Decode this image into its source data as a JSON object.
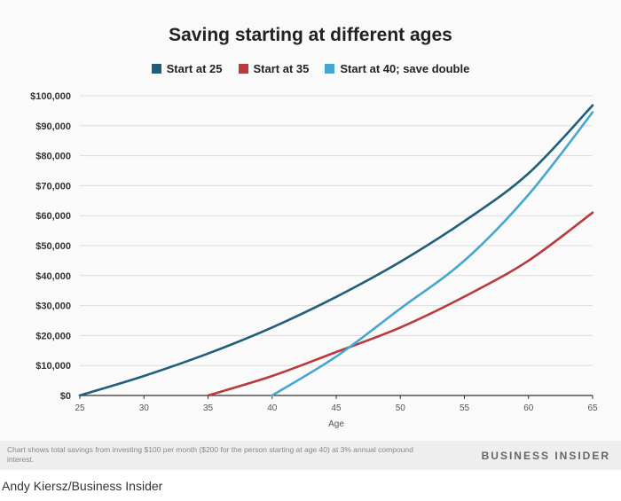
{
  "chart_data": {
    "type": "line",
    "title": "Saving starting at different ages",
    "xlabel": "Age",
    "ylabel": "",
    "xlim": [
      25,
      65
    ],
    "ylim": [
      0,
      100000
    ],
    "x_ticks": [
      "25",
      "30",
      "35",
      "40",
      "45",
      "50",
      "55",
      "60",
      "65"
    ],
    "y_ticks": [
      "$0",
      "$10,000",
      "$20,000",
      "$30,000",
      "$40,000",
      "$50,000",
      "$60,000",
      "$70,000",
      "$80,000",
      "$90,000",
      "$100,000"
    ],
    "grid": "horizontal",
    "legend_position": "top-center",
    "x": [
      25,
      30,
      35,
      40,
      45,
      50,
      55,
      60,
      65
    ],
    "series": [
      {
        "name": "Start at 25",
        "color": "#1f5f7a",
        "x": [
          25,
          30,
          35,
          40,
          45,
          50,
          55,
          60,
          65
        ],
        "values": [
          0,
          6500,
          14000,
          22700,
          32900,
          44600,
          58200,
          74100,
          96800
        ]
      },
      {
        "name": "Start at 35",
        "color": "#b83a3e",
        "x": [
          35,
          40,
          45,
          50,
          55,
          60,
          65
        ],
        "values": [
          0,
          6500,
          14500,
          22700,
          33000,
          45000,
          61000
        ]
      },
      {
        "name": "Start at 40; save double",
        "color": "#46a6d0",
        "x": [
          40,
          45,
          50,
          55,
          60,
          65
        ],
        "values": [
          0,
          13000,
          29000,
          45000,
          67000,
          94500
        ]
      }
    ]
  },
  "footer": {
    "note": "Chart shows total savings from investing $100 per month ($200 for the person starting at age 40) at 3% annual compound interest.",
    "brand": "BUSINESS INSIDER"
  },
  "credit": "Andy Kiersz/Business Insider"
}
